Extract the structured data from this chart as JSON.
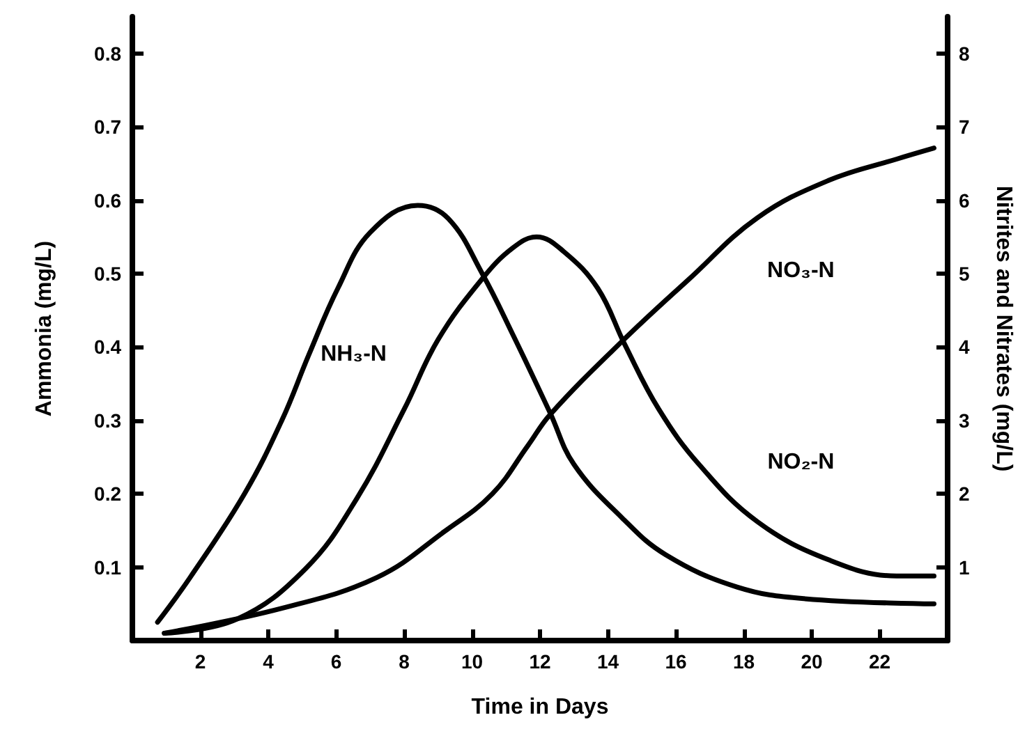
{
  "chart_data": {
    "type": "line",
    "xlabel": "Time in Days",
    "ylabel": "Ammonia (mg/L)",
    "y2label": "Nitrites and Nitrates (mg/L)",
    "xlim": [
      0,
      24
    ],
    "xticks": [
      2,
      4,
      6,
      8,
      10,
      12,
      14,
      16,
      18,
      20,
      22
    ],
    "ylim": [
      0,
      0.85
    ],
    "yticks": [
      0.1,
      0.2,
      0.3,
      0.4,
      0.5,
      0.6,
      0.7,
      0.8
    ],
    "y2lim": [
      0,
      8.5
    ],
    "y2ticks": [
      1,
      2,
      3,
      4,
      5,
      6,
      7,
      8
    ],
    "grid": false,
    "legend": false,
    "marker": "none",
    "line_style": "solid",
    "series": [
      {
        "name": "NH₃-N",
        "color": "#000000",
        "x": [
          0.74,
          1.7,
          3.3,
          4.4,
          5.2,
          6.05,
          7.0,
          8.4,
          9.3,
          10.3,
          11.2,
          12.3,
          13.0,
          14.4,
          15.7,
          17.8,
          19.8,
          23.6
        ],
        "values": [
          0.025,
          0.086,
          0.2,
          0.3,
          0.39,
          0.48,
          0.556,
          0.593,
          0.575,
          0.5,
          0.417,
          0.31,
          0.24,
          0.168,
          0.117,
          0.073,
          0.057,
          0.05
        ]
      },
      {
        "name": "NO₂-N",
        "color": "#000000",
        "axis": "y2",
        "x": [
          0.94,
          3.07,
          5.1,
          6.6,
          8.0,
          9.0,
          10.3,
          11.2,
          11.9,
          12.7,
          13.7,
          14.5,
          15.5,
          16.7,
          18.4,
          20.5,
          22.5,
          23.6
        ],
        "values": [
          0.1,
          0.29,
          0.98,
          1.93,
          3.15,
          4.1,
          4.93,
          5.35,
          5.5,
          5.3,
          4.8,
          4.03,
          3.15,
          2.39,
          1.62,
          1.1,
          0.88,
          0.88
        ]
      },
      {
        "name": "NO₃-N",
        "color": "#000000",
        "axis": "y2",
        "x": [
          0.94,
          4.4,
          7.2,
          9.2,
          10.6,
          11.65,
          12.3,
          14.4,
          16.4,
          18.4,
          20.5,
          22.5,
          23.6
        ],
        "values": [
          0.1,
          0.44,
          0.86,
          1.49,
          2.0,
          2.66,
          3.08,
          4.07,
          4.93,
          5.76,
          6.27,
          6.56,
          6.71
        ]
      }
    ]
  }
}
